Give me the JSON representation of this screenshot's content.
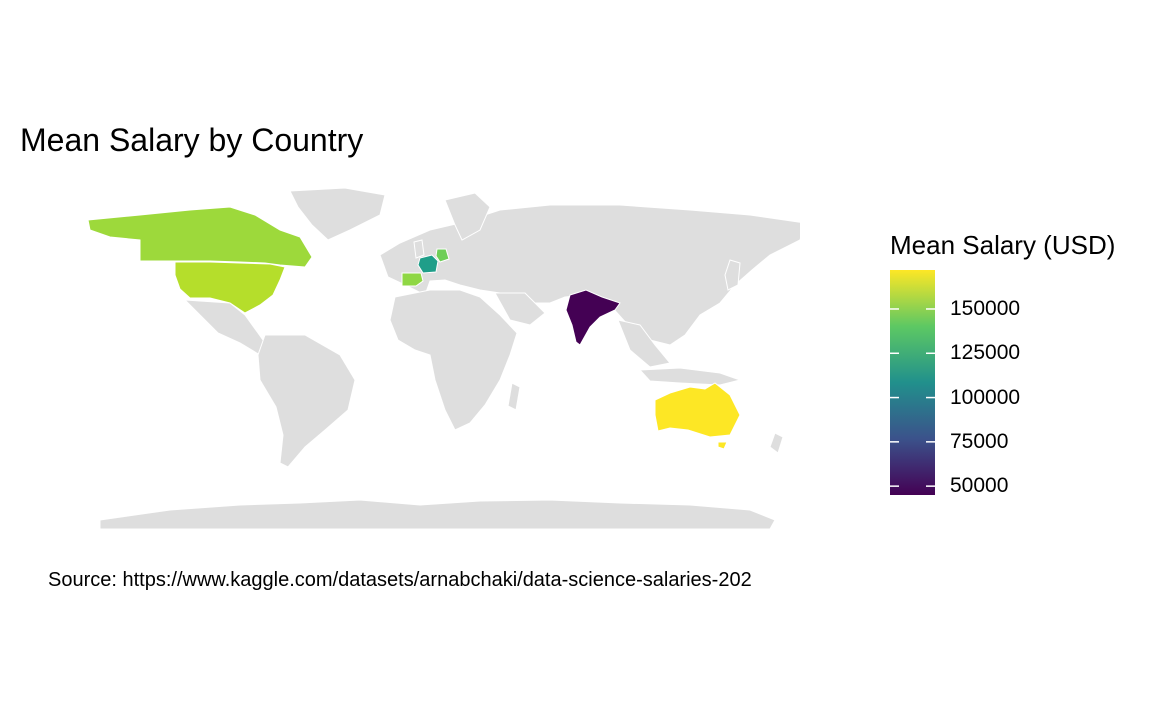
{
  "title": "Mean Salary by Country",
  "source": "Source: https://www.kaggle.com/datasets/arnabchaki/data-science-salaries-202",
  "legend": {
    "title": "Mean Salary (USD)",
    "min": 45000,
    "max": 172000,
    "ticks": [
      {
        "value": 150000,
        "label": "150000"
      },
      {
        "value": 125000,
        "label": "125000"
      },
      {
        "value": 100000,
        "label": "100000"
      },
      {
        "value": 75000,
        "label": "75000"
      },
      {
        "value": 50000,
        "label": "50000"
      }
    ],
    "colors": [
      "#440154",
      "#3b528b",
      "#21908c",
      "#5dc863",
      "#fde725"
    ]
  },
  "map_colors": {
    "land": "#dedede",
    "border": "#ffffff"
  },
  "countries": [
    {
      "name": "United States",
      "value": 158000,
      "color": "#b5de2b"
    },
    {
      "name": "Canada",
      "value": 148000,
      "color": "#9dd93b"
    },
    {
      "name": "Spain",
      "value": 152000,
      "color": "#8fd744"
    },
    {
      "name": "Germany",
      "value": 143000,
      "color": "#6ece58"
    },
    {
      "name": "France",
      "value": 120000,
      "color": "#1f9e89"
    },
    {
      "name": "India",
      "value": 45000,
      "color": "#440154"
    },
    {
      "name": "Australia",
      "value": 172000,
      "color": "#fde725"
    }
  ]
}
